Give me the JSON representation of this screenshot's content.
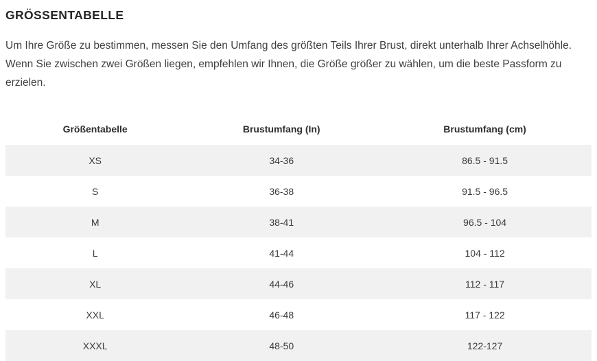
{
  "page": {
    "title": "GRÖSSENTABELLE",
    "description": "Um Ihre Größe zu bestimmen, messen Sie den Umfang des größten Teils Ihrer Brust, direkt unterhalb Ihrer Achselhöhle. Wenn Sie zwischen zwei Größen liegen, empfehlen wir Ihnen, die Größe größer zu wählen, um die beste Passform zu erzielen."
  },
  "size_table": {
    "headers": [
      "Größentabelle",
      "Brustumfang (In)",
      "Brustumfang (cm)"
    ],
    "rows": [
      {
        "size": "XS",
        "chest_in": "34-36",
        "chest_cm": "86.5 - 91.5"
      },
      {
        "size": "S",
        "chest_in": "36-38",
        "chest_cm": "91.5 - 96.5"
      },
      {
        "size": "M",
        "chest_in": "38-41",
        "chest_cm": "96.5 - 104"
      },
      {
        "size": "L",
        "chest_in": "41-44",
        "chest_cm": "104 - 112"
      },
      {
        "size": "XL",
        "chest_in": "44-46",
        "chest_cm": "112 - 117"
      },
      {
        "size": "XXL",
        "chest_in": "46-48",
        "chest_cm": "117 - 122"
      },
      {
        "size": "XXXL",
        "chest_in": "48-50",
        "chest_cm": "122-127"
      }
    ],
    "colors": {
      "stripe_bg": "#f1f1f1",
      "text": "#3a3a3a",
      "heading_text": "#262626"
    }
  }
}
